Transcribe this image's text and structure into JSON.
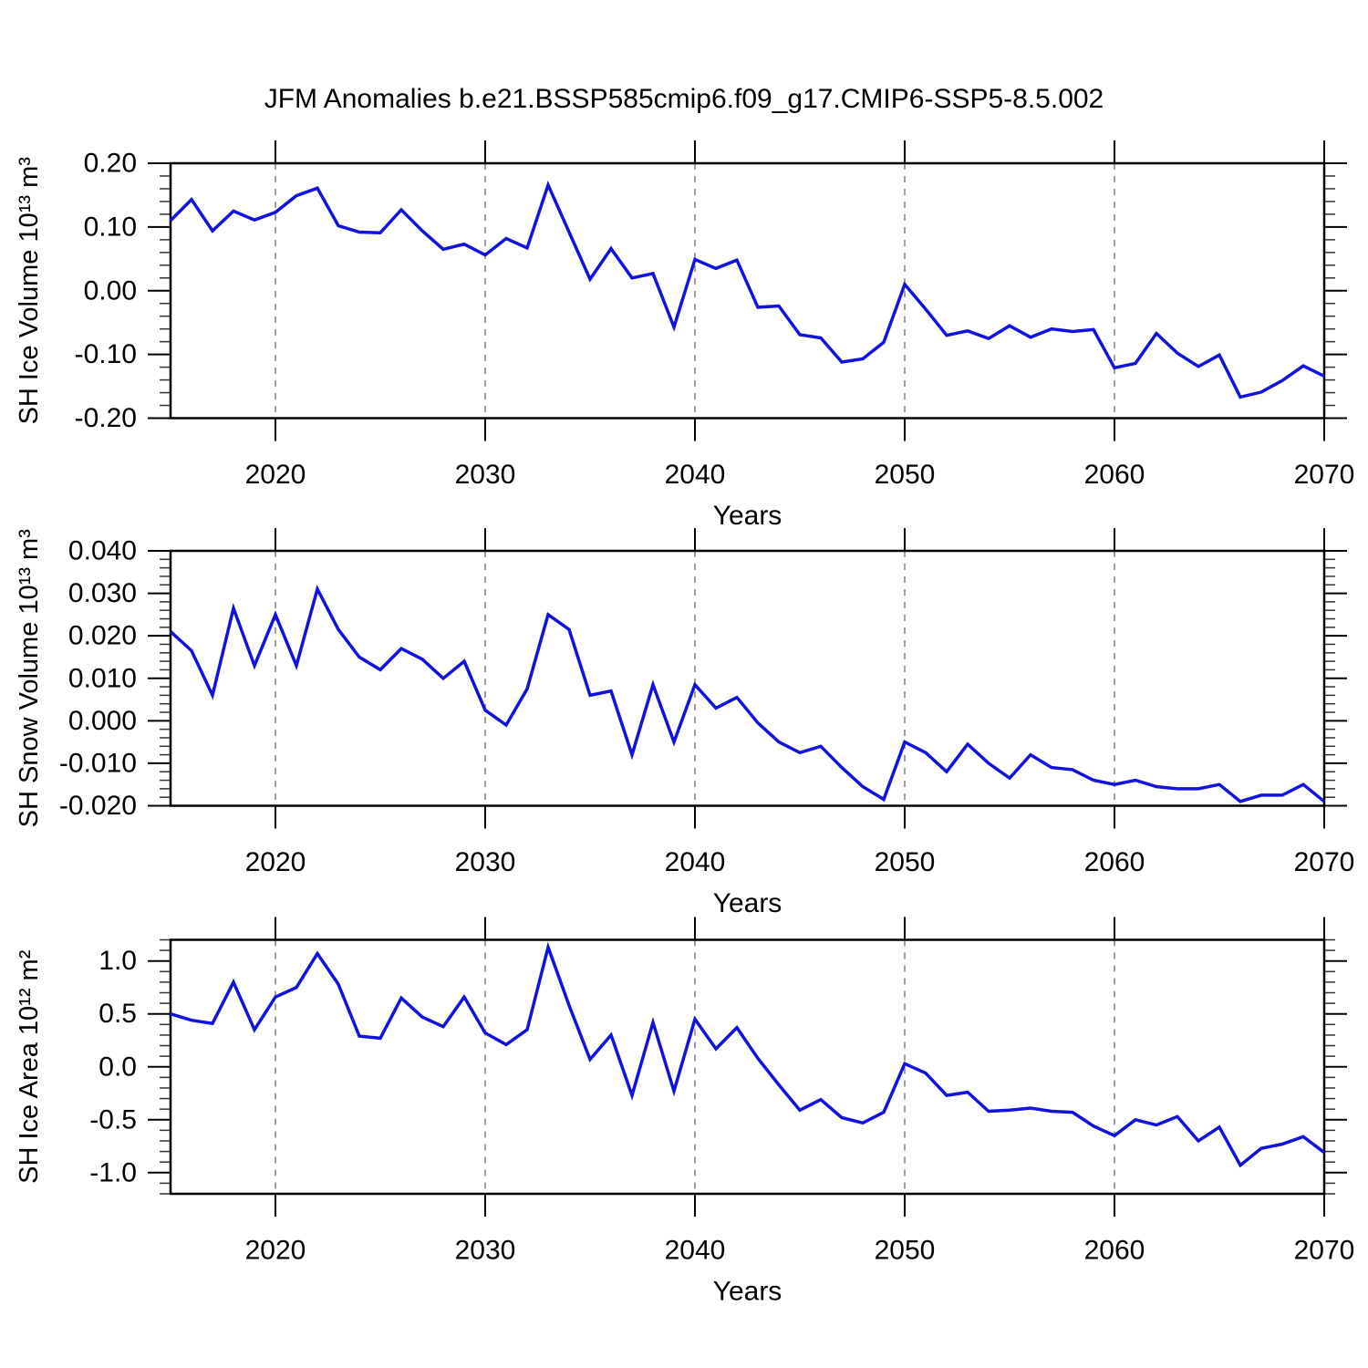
{
  "title": "JFM Anomalies b.e21.BSSP585cmip6.f09_g17.CMIP6-SSP5-8.5.002",
  "colors": {
    "line": "#1111e0",
    "grid": "#808080",
    "axis": "#000000"
  },
  "chart_data": {
    "type": "line",
    "title": "JFM Anomalies b.e21.BSSP585cmip6.f09_g17.CMIP6-SSP5-8.5.002",
    "xlabel": "Years",
    "xlim": [
      2015,
      2070
    ],
    "x_ticks": [
      {
        "v": 2020,
        "label": "2020"
      },
      {
        "v": 2030,
        "label": "2030"
      },
      {
        "v": 2040,
        "label": "2040"
      },
      {
        "v": 2050,
        "label": "2050"
      },
      {
        "v": 2060,
        "label": "2060"
      },
      {
        "v": 2070,
        "label": "2070"
      }
    ],
    "x_minor_step": 2,
    "grid_lines_at": [
      2020,
      2030,
      2040,
      2050,
      2060
    ],
    "legend": "none",
    "grid": "vertical-dashed-only",
    "x": [
      2015,
      2016,
      2017,
      2018,
      2019,
      2020,
      2021,
      2022,
      2023,
      2024,
      2025,
      2026,
      2027,
      2028,
      2029,
      2030,
      2031,
      2032,
      2033,
      2034,
      2035,
      2036,
      2037,
      2038,
      2039,
      2040,
      2041,
      2042,
      2043,
      2044,
      2045,
      2046,
      2047,
      2048,
      2049,
      2050,
      2051,
      2052,
      2053,
      2054,
      2055,
      2056,
      2057,
      2058,
      2059,
      2060,
      2061,
      2062,
      2063,
      2064,
      2065,
      2066,
      2067,
      2068,
      2069,
      2070
    ],
    "panels": [
      {
        "ylabel": "SH Ice Volume 10¹³ m³",
        "ylim": [
          -0.2,
          0.2
        ],
        "y_ticks": [
          {
            "v": 0.2,
            "label": "0.20"
          },
          {
            "v": 0.1,
            "label": "0.10"
          },
          {
            "v": 0.0,
            "label": "0.00"
          },
          {
            "v": -0.1,
            "label": "-0.10"
          },
          {
            "v": -0.2,
            "label": "-0.20"
          }
        ],
        "y_minor_step": 0.02,
        "values": [
          0.11,
          0.143,
          0.094,
          0.125,
          0.111,
          0.123,
          0.149,
          0.161,
          0.102,
          0.092,
          0.091,
          0.127,
          0.094,
          0.065,
          0.073,
          0.056,
          0.082,
          0.067,
          0.166,
          0.092,
          0.018,
          0.066,
          0.02,
          0.027,
          -0.057,
          0.049,
          0.035,
          0.048,
          -0.026,
          -0.024,
          -0.069,
          -0.074,
          -0.112,
          -0.107,
          -0.081,
          0.01,
          -0.029,
          -0.07,
          -0.063,
          -0.075,
          -0.055,
          -0.073,
          -0.06,
          -0.064,
          -0.061,
          -0.121,
          -0.114,
          -0.067,
          -0.098,
          -0.119,
          -0.101,
          -0.167,
          -0.159,
          -0.141,
          -0.118,
          -0.134
        ]
      },
      {
        "ylabel": "SH Snow Volume 10¹³ m³",
        "ylim": [
          -0.02,
          0.04
        ],
        "y_ticks": [
          {
            "v": 0.04,
            "label": "0.040"
          },
          {
            "v": 0.03,
            "label": "0.030"
          },
          {
            "v": 0.02,
            "label": "0.020"
          },
          {
            "v": 0.01,
            "label": "0.010"
          },
          {
            "v": 0.0,
            "label": "0.000"
          },
          {
            "v": -0.01,
            "label": "-0.010"
          },
          {
            "v": -0.02,
            "label": "-0.020"
          }
        ],
        "y_minor_step": 0.002,
        "values": [
          0.021,
          0.0165,
          0.006,
          0.0265,
          0.013,
          0.025,
          0.013,
          0.031,
          0.0215,
          0.015,
          0.012,
          0.017,
          0.0145,
          0.01,
          0.014,
          0.0025,
          -0.001,
          0.0075,
          0.025,
          0.0215,
          0.006,
          0.007,
          -0.008,
          0.0085,
          -0.005,
          0.0085,
          0.003,
          0.0055,
          -0.0005,
          -0.005,
          -0.0075,
          -0.006,
          -0.011,
          -0.0155,
          -0.0185,
          -0.005,
          -0.0075,
          -0.012,
          -0.0055,
          -0.01,
          -0.0135,
          -0.008,
          -0.011,
          -0.0115,
          -0.014,
          -0.015,
          -0.014,
          -0.0155,
          -0.016,
          -0.016,
          -0.015,
          -0.019,
          -0.0175,
          -0.0175,
          -0.015,
          -0.019
        ]
      },
      {
        "ylabel": "SH Ice Area 10¹² m²",
        "ylim": [
          -1.2,
          1.2
        ],
        "y_ticks": [
          {
            "v": 1.0,
            "label": "1.0"
          },
          {
            "v": 0.5,
            "label": "0.5"
          },
          {
            "v": 0.0,
            "label": "0.0"
          },
          {
            "v": -0.5,
            "label": "-0.5"
          },
          {
            "v": -1.0,
            "label": "-1.0"
          }
        ],
        "y_minor_step": 0.1,
        "values": [
          0.5,
          0.44,
          0.41,
          0.8,
          0.35,
          0.66,
          0.75,
          1.07,
          0.78,
          0.29,
          0.27,
          0.65,
          0.47,
          0.38,
          0.66,
          0.32,
          0.21,
          0.35,
          1.13,
          0.58,
          0.07,
          0.3,
          -0.27,
          0.42,
          -0.23,
          0.45,
          0.17,
          0.37,
          0.08,
          -0.17,
          -0.41,
          -0.31,
          -0.48,
          -0.53,
          -0.43,
          0.03,
          -0.06,
          -0.27,
          -0.24,
          -0.42,
          -0.41,
          -0.39,
          -0.42,
          -0.43,
          -0.56,
          -0.65,
          -0.5,
          -0.55,
          -0.47,
          -0.7,
          -0.57,
          -0.93,
          -0.77,
          -0.73,
          -0.66,
          -0.81
        ]
      }
    ]
  }
}
